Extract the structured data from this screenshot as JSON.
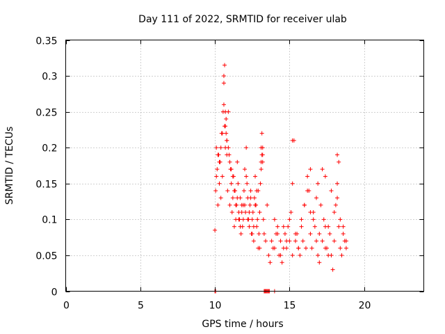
{
  "chart_data": {
    "type": "scatter",
    "title": "Day 111 of 2022, SRMTID for receiver ulab",
    "xlabel": "GPS time / hours",
    "ylabel": "SRMTID / TECUs",
    "xlim": [
      0,
      24
    ],
    "ylim": [
      0,
      0.35
    ],
    "xticks": [
      0,
      5,
      10,
      15,
      20
    ],
    "xtick_labels": [
      "0",
      "5",
      "10",
      "15",
      "20"
    ],
    "yticks": [
      0,
      0.05,
      0.1,
      0.15,
      0.2,
      0.25,
      0.3,
      0.35
    ],
    "ytick_labels": [
      "0",
      "0.05",
      "0.1",
      "0.15",
      "0.2",
      "0.25",
      "0.3",
      "0.35"
    ],
    "grid": true,
    "marker": "+",
    "color": "#ff0000",
    "series": [
      {
        "name": "SRMTID",
        "x": [
          10.0,
          10.05,
          10.1,
          10.15,
          10.2,
          10.25,
          10.3,
          10.35,
          10.4,
          10.45,
          10.5,
          10.55,
          10.6,
          10.65,
          10.7,
          10.75,
          10.8,
          10.85,
          10.9,
          10.95,
          11.0,
          11.05,
          11.1,
          11.15,
          11.2,
          11.25,
          11.3,
          11.35,
          11.4,
          11.45,
          11.5,
          11.55,
          11.6,
          11.65,
          11.7,
          11.75,
          11.8,
          11.85,
          11.9,
          11.95,
          12.0,
          12.05,
          12.1,
          12.15,
          12.2,
          12.25,
          12.3,
          12.35,
          12.4,
          12.45,
          12.5,
          12.55,
          12.6,
          12.65,
          12.7,
          12.75,
          12.8,
          12.85,
          12.9,
          12.95,
          13.0,
          13.05,
          13.1,
          13.15,
          13.2,
          13.25,
          13.3,
          13.4,
          13.5,
          13.6,
          13.7,
          13.8,
          13.9,
          14.0,
          14.1,
          14.2,
          14.3,
          14.4,
          14.5,
          14.6,
          14.7,
          14.8,
          14.9,
          15.0,
          15.1,
          15.2,
          15.3,
          15.4,
          15.5,
          15.6,
          15.7,
          15.8,
          15.9,
          16.0,
          16.1,
          16.2,
          16.3,
          16.4,
          16.5,
          16.6,
          16.7,
          16.8,
          16.9,
          17.0,
          17.1,
          17.2,
          17.3,
          17.4,
          17.5,
          17.6,
          17.7,
          17.8,
          17.9,
          18.0,
          18.1,
          18.2,
          18.3,
          18.4,
          18.5,
          18.6,
          18.7,
          18.8,
          10.1,
          10.2,
          10.3,
          10.4,
          10.5,
          10.6,
          10.7,
          10.8,
          10.9,
          11.0,
          11.1,
          11.2,
          11.3,
          11.4,
          11.5,
          11.6,
          11.7,
          11.8,
          11.9,
          12.0,
          12.1,
          12.2,
          12.3,
          12.4,
          12.5,
          12.6,
          12.7,
          12.8,
          12.9,
          13.0,
          13.1,
          13.2,
          14.0,
          14.2,
          14.4,
          14.6,
          14.8,
          15.0,
          15.2,
          15.4,
          15.6,
          15.8,
          16.0,
          16.2,
          16.4,
          16.6,
          16.8,
          17.0,
          17.2,
          17.4,
          17.6,
          17.8,
          18.0,
          18.2,
          18.4,
          18.6,
          18.8,
          10.6,
          10.65,
          10.7,
          10.75,
          10.8,
          13.1,
          13.15,
          13.2,
          15.2,
          16.4,
          16.9,
          17.4,
          18.2,
          18.3,
          10.0,
          10.05,
          13.3,
          13.35,
          13.4,
          13.45,
          13.5,
          13.55,
          13.6,
          13.65,
          14.0
        ],
        "y": [
          0.085,
          0.14,
          0.2,
          0.17,
          0.12,
          0.19,
          0.15,
          0.18,
          0.13,
          0.22,
          0.16,
          0.25,
          0.29,
          0.315,
          0.2,
          0.24,
          0.21,
          0.14,
          0.25,
          0.19,
          0.12,
          0.17,
          0.15,
          0.11,
          0.13,
          0.16,
          0.09,
          0.14,
          0.1,
          0.12,
          0.18,
          0.15,
          0.11,
          0.1,
          0.13,
          0.08,
          0.12,
          0.09,
          0.1,
          0.14,
          0.12,
          0.11,
          0.2,
          0.15,
          0.13,
          0.1,
          0.09,
          0.12,
          0.14,
          0.08,
          0.1,
          0.11,
          0.07,
          0.13,
          0.16,
          0.12,
          0.09,
          0.1,
          0.14,
          0.08,
          0.06,
          0.15,
          0.2,
          0.22,
          0.18,
          0.1,
          0.08,
          0.07,
          0.12,
          0.05,
          0.04,
          0.07,
          0.06,
          0.1,
          0.08,
          0.09,
          0.05,
          0.07,
          0.04,
          0.06,
          0.08,
          0.07,
          0.09,
          0.1,
          0.11,
          0.15,
          0.21,
          0.07,
          0.08,
          0.06,
          0.05,
          0.09,
          0.07,
          0.12,
          0.06,
          0.16,
          0.14,
          0.08,
          0.06,
          0.11,
          0.09,
          0.07,
          0.05,
          0.04,
          0.12,
          0.17,
          0.1,
          0.09,
          0.06,
          0.05,
          0.08,
          0.14,
          0.03,
          0.07,
          0.12,
          0.19,
          0.09,
          0.06,
          0.05,
          0.09,
          0.07,
          0.06,
          0.16,
          0.19,
          0.18,
          0.2,
          0.22,
          0.26,
          0.23,
          0.19,
          0.2,
          0.18,
          0.17,
          0.16,
          0.14,
          0.12,
          0.13,
          0.1,
          0.09,
          0.11,
          0.12,
          0.17,
          0.16,
          0.1,
          0.11,
          0.13,
          0.08,
          0.09,
          0.12,
          0.14,
          0.06,
          0.11,
          0.17,
          0.19,
          0.06,
          0.08,
          0.05,
          0.09,
          0.06,
          0.07,
          0.05,
          0.08,
          0.06,
          0.1,
          0.12,
          0.14,
          0.11,
          0.1,
          0.13,
          0.08,
          0.07,
          0.06,
          0.09,
          0.05,
          0.11,
          0.13,
          0.1,
          0.08,
          0.07,
          0.3,
          0.23,
          0.25,
          0.22,
          0.21,
          0.18,
          0.19,
          0.2,
          0.21,
          0.17,
          0.15,
          0.16,
          0.15,
          0.18,
          0.0,
          0.0,
          0.0,
          0.0,
          0.0,
          0.0,
          0.0,
          0.0,
          0.0,
          0.0,
          0.0
        ]
      }
    ]
  }
}
